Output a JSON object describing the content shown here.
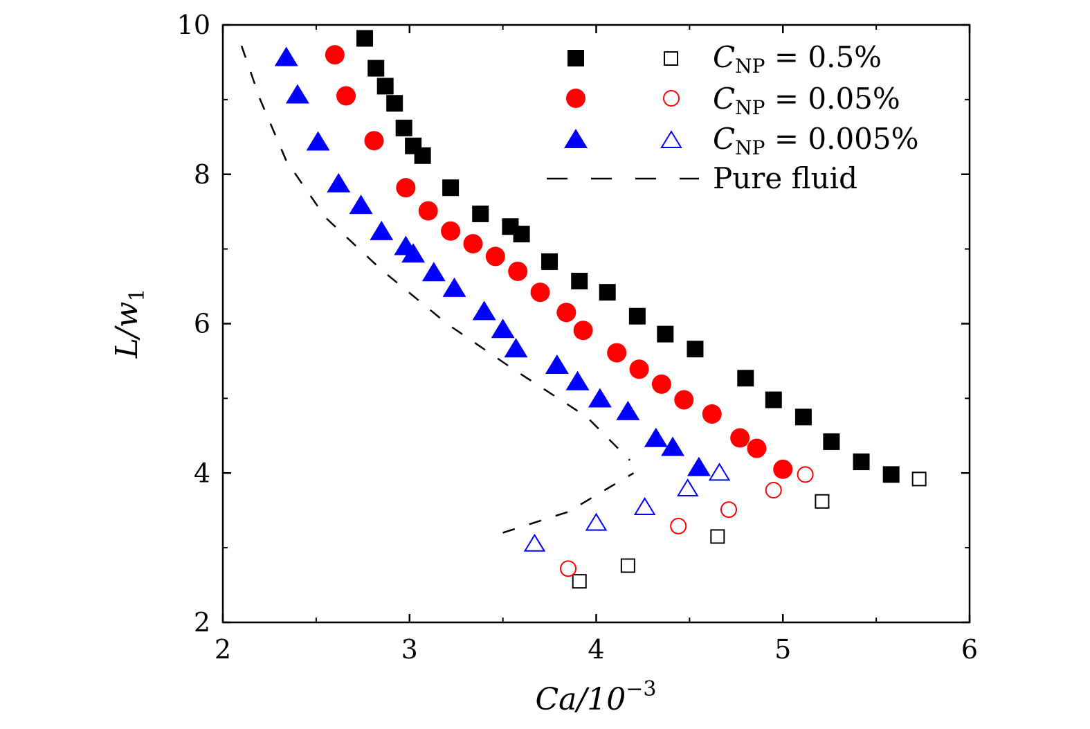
{
  "chart_data": {
    "type": "scatter",
    "title": "",
    "xlabel": "Ca/10^-3",
    "ylabel": "L/w1",
    "xlabel_main": "Ca/10",
    "xlabel_sup": "−3",
    "ylabel_main": "L/w",
    "ylabel_sub": "1",
    "xlim": [
      2,
      6
    ],
    "ylim": [
      2,
      10
    ],
    "xticks": [
      "2",
      "3",
      "4",
      "5",
      "6"
    ],
    "yticks": [
      "2",
      "4",
      "6",
      "8",
      "10"
    ],
    "grid": false,
    "legend_position": "top-right",
    "series": [
      {
        "name": "C_NP = 0.5%",
        "label_main": "C",
        "label_sub": "NP",
        "label_value": " = 0.5%",
        "color": "#000000",
        "marker": "square",
        "filled": [
          [
            2.76,
            9.82
          ],
          [
            2.82,
            9.42
          ],
          [
            2.87,
            9.18
          ],
          [
            2.92,
            8.95
          ],
          [
            2.97,
            8.62
          ],
          [
            3.02,
            8.38
          ],
          [
            3.07,
            8.25
          ],
          [
            3.22,
            7.82
          ],
          [
            3.38,
            7.47
          ],
          [
            3.54,
            7.3
          ],
          [
            3.6,
            7.2
          ],
          [
            3.75,
            6.83
          ],
          [
            3.91,
            6.57
          ],
          [
            4.06,
            6.42
          ],
          [
            4.22,
            6.1
          ],
          [
            4.37,
            5.86
          ],
          [
            4.53,
            5.66
          ],
          [
            4.8,
            5.27
          ],
          [
            4.95,
            4.98
          ],
          [
            5.11,
            4.75
          ],
          [
            5.26,
            4.42
          ],
          [
            5.42,
            4.15
          ],
          [
            5.58,
            3.98
          ]
        ],
        "open": [
          [
            3.91,
            2.55
          ],
          [
            4.17,
            2.76
          ],
          [
            4.65,
            3.15
          ],
          [
            5.21,
            3.62
          ],
          [
            5.73,
            3.92
          ]
        ]
      },
      {
        "name": "C_NP = 0.05%",
        "label_main": "C",
        "label_sub": "NP",
        "label_value": " = 0.05%",
        "color": "#ff0000",
        "marker": "circle",
        "filled": [
          [
            2.6,
            9.6
          ],
          [
            2.66,
            9.05
          ],
          [
            2.81,
            8.45
          ],
          [
            2.98,
            7.82
          ],
          [
            3.1,
            7.51
          ],
          [
            3.22,
            7.24
          ],
          [
            3.34,
            7.07
          ],
          [
            3.46,
            6.9
          ],
          [
            3.58,
            6.7
          ],
          [
            3.7,
            6.42
          ],
          [
            3.84,
            6.15
          ],
          [
            3.93,
            5.91
          ],
          [
            4.11,
            5.61
          ],
          [
            4.23,
            5.39
          ],
          [
            4.35,
            5.19
          ],
          [
            4.47,
            4.98
          ],
          [
            4.62,
            4.79
          ],
          [
            4.77,
            4.47
          ],
          [
            4.86,
            4.33
          ],
          [
            5.0,
            4.05
          ]
        ],
        "open": [
          [
            3.85,
            2.72
          ],
          [
            4.44,
            3.29
          ],
          [
            4.71,
            3.51
          ],
          [
            4.95,
            3.77
          ],
          [
            5.12,
            3.98
          ]
        ]
      },
      {
        "name": "C_NP = 0.005%",
        "label_main": "C",
        "label_sub": "NP",
        "label_value": " = 0.005%",
        "color": "#0000ff",
        "marker": "triangle",
        "filled": [
          [
            2.34,
            9.55
          ],
          [
            2.4,
            9.05
          ],
          [
            2.51,
            8.42
          ],
          [
            2.62,
            7.86
          ],
          [
            2.74,
            7.57
          ],
          [
            2.85,
            7.22
          ],
          [
            2.98,
            7.02
          ],
          [
            3.02,
            6.92
          ],
          [
            3.13,
            6.67
          ],
          [
            3.24,
            6.46
          ],
          [
            3.4,
            6.15
          ],
          [
            3.5,
            5.91
          ],
          [
            3.57,
            5.65
          ],
          [
            3.79,
            5.43
          ],
          [
            3.9,
            5.21
          ],
          [
            4.02,
            4.98
          ],
          [
            4.17,
            4.81
          ],
          [
            4.32,
            4.45
          ],
          [
            4.41,
            4.33
          ],
          [
            4.55,
            4.06
          ]
        ],
        "open": [
          [
            3.67,
            3.04
          ],
          [
            4.0,
            3.32
          ],
          [
            4.26,
            3.53
          ],
          [
            4.49,
            3.78
          ],
          [
            4.66,
            3.99
          ]
        ]
      },
      {
        "name": "Pure fluid",
        "color": "#000000",
        "marker": "dashed-line",
        "segments": [
          [
            [
              2.1,
              9.72
            ],
            [
              2.2,
              9.0
            ],
            [
              2.34,
              8.18
            ],
            [
              2.55,
              7.42
            ],
            [
              2.85,
              6.72
            ],
            [
              3.2,
              6.0
            ],
            [
              3.55,
              5.4
            ],
            [
              3.95,
              4.75
            ],
            [
              4.18,
              4.17
            ]
          ],
          [
            [
              3.5,
              3.2
            ],
            [
              3.85,
              3.48
            ],
            [
              4.2,
              4.0
            ]
          ]
        ]
      }
    ]
  }
}
